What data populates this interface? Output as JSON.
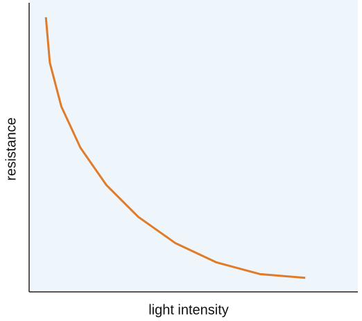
{
  "chart_data": {
    "type": "line",
    "x_label": "light intensity",
    "y_label": "resistance",
    "x": [
      5.1,
      6.3,
      9.8,
      15.6,
      23.5,
      33.2,
      44.5,
      57.0,
      70.2,
      84.0
    ],
    "series": [
      {
        "color": "#e07b2a",
        "values": [
          94.1,
          78.5,
          63.5,
          49.4,
          36.6,
          25.7,
          16.7,
          10.1,
          6.1,
          4.8
        ]
      }
    ],
    "xlim": [
      0,
      100
    ],
    "ylim": [
      0,
      100
    ],
    "background": "#eef6fb"
  }
}
